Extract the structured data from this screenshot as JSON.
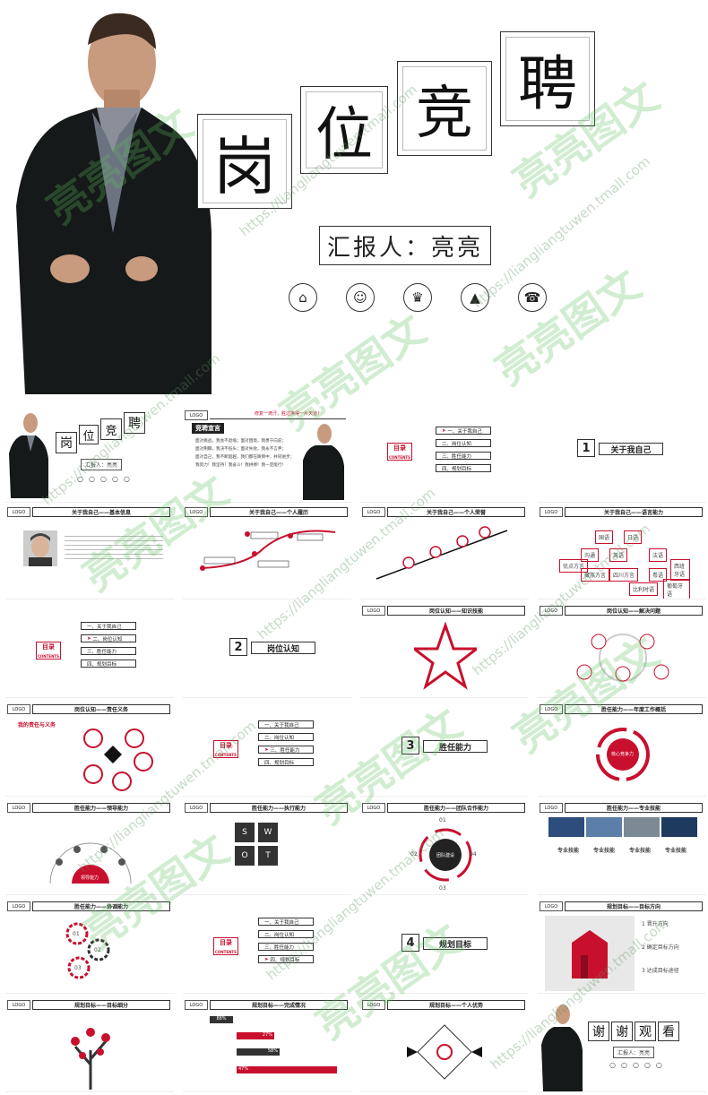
{
  "hero": {
    "chars": [
      "岗",
      "位",
      "竞",
      "聘"
    ],
    "subtitle": "汇报人：亮亮",
    "icons": [
      "home-icon",
      "people-icon",
      "trophy-icon",
      "chart-icon",
      "phone-icon"
    ]
  },
  "watermark": {
    "brand": "亮亮图文",
    "url": "https://liangliangtuwen.tmall.com",
    "latin": "LIANGLIANGTUWEN"
  },
  "slides": {
    "s1": {
      "chars": [
        "岗",
        "位",
        "竞",
        "聘"
      ],
      "subtitle": "汇报人：亮亮"
    },
    "s2": {
      "logo": "LOGO",
      "banner": "修复一滴汗，胜过换得一片天道！",
      "title": "竞聘宣言",
      "lines": [
        "面对挑战，我会不退缩；面对困境，我勇于向前；",
        "面对荆棘，我决不低头；面对失败，我永不言弃；",
        "面对自己，我不断超越，我们都在跌倒中，并同进步；",
        "我努力！我坚持！我奋斗！我拼搏！我一定能行！"
      ]
    },
    "menu": {
      "logo": "目录",
      "logo_en": "CONTENTS",
      "items": [
        "一、关于我自己",
        "二、岗位认知",
        "三、胜任能力",
        "四、规划目标"
      ]
    },
    "s4": {
      "num": "1",
      "title": "关于我自己"
    },
    "s5": {
      "logo": "LOGO",
      "header": "关于我自己——基本信息"
    },
    "s6": {
      "logo": "LOGO",
      "header": "关于我自己——个人履历",
      "dates": [
        "2008.12-2010.1",
        "2010.1-2016.1",
        "2016.1-2016.11",
        "2016.11-2017.1"
      ],
      "labels": [
        "自己职位名称",
        "培训新进人员",
        "人力资源管理部职员",
        "业绩一流"
      ]
    },
    "s7": {
      "logo": "LOGO",
      "header": "关于我自己——个人荣誉"
    },
    "s8": {
      "logo": "LOGO",
      "header": "关于我自己——语言能力",
      "cells": [
        "国语",
        "日语",
        "英语",
        "沟通",
        "法语",
        "优点方言",
        "藏族方言",
        "四川方言",
        "粤语",
        "西班牙语",
        "比利时语",
        "葡萄牙语"
      ]
    },
    "s10": {
      "num": "2",
      "title": "岗位认知"
    },
    "s11": {
      "logo": "LOGO",
      "header": "岗位认知——知识技能"
    },
    "s12": {
      "logo": "LOGO",
      "header": "岗位认知——解决问题"
    },
    "s13": {
      "logo": "LOGO",
      "header": "岗位认知——责任义务",
      "sub": "我的责任与义务",
      "labels": [
        "远见力",
        "决策力",
        "学习力",
        "判断力",
        "执行力"
      ]
    },
    "s15": {
      "num": "3",
      "title": "胜任能力"
    },
    "s16": {
      "logo": "LOGO",
      "header": "胜任能力——年度工作概括",
      "center": "核心竞争力"
    },
    "s17": {
      "logo": "LOGO",
      "header": "胜任能力——领导能力",
      "center": "领导能力"
    },
    "s18": {
      "logo": "LOGO",
      "header": "胜任能力——执行能力",
      "swot": [
        "S",
        "W",
        "O",
        "T"
      ]
    },
    "s19": {
      "logo": "LOGO",
      "header": "胜任能力——团队合作能力",
      "center": "团队建设",
      "nums": [
        "01",
        "02",
        "03",
        "04"
      ]
    },
    "s20": {
      "logo": "LOGO",
      "header": "胜任能力——专业技能",
      "labels": [
        "专业技能",
        "专业技能",
        "专业技能",
        "专业技能"
      ]
    },
    "s21": {
      "logo": "LOGO",
      "header": "胜任能力——协调能力",
      "nums": [
        "01",
        "02",
        "03"
      ]
    },
    "s23": {
      "num": "4",
      "title": "规划目标"
    },
    "s24": {
      "logo": "LOGO",
      "header": "规划目标——目标方向",
      "items": [
        "1  晋升方向",
        "2  确定目标方向",
        "3  达成目标途径"
      ]
    },
    "s25": {
      "logo": "LOGO",
      "header": "规划目标——目标细分"
    },
    "s26": {
      "logo": "LOGO",
      "header": "规划目标——完成情况",
      "pcts": [
        "88%",
        "27%",
        "58%",
        "47%"
      ]
    },
    "s27": {
      "logo": "LOGO",
      "header": "规划目标——个人优势"
    },
    "s28": {
      "chars": [
        "谢",
        "谢",
        "观",
        "看"
      ],
      "subtitle": "汇报人：亮亮"
    }
  }
}
